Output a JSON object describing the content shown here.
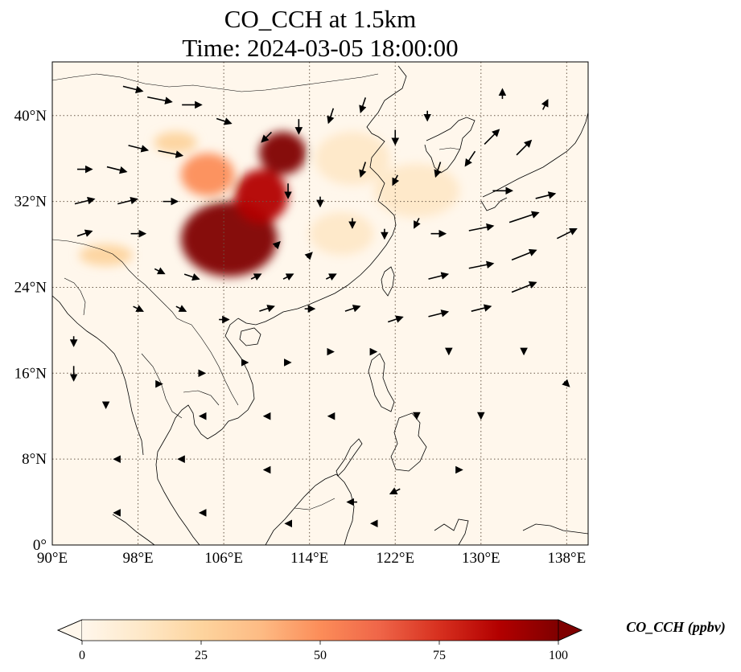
{
  "title_line1": "CO_CCH at 1.5km",
  "title_line2": "Time: 2024-03-05 18:00:00",
  "map": {
    "lon_range": [
      90,
      140
    ],
    "lat_range": [
      0,
      45
    ],
    "lon_ticks": [
      {
        "value": 90,
        "label": "90°E"
      },
      {
        "value": 98,
        "label": "98°E"
      },
      {
        "value": 106,
        "label": "106°E"
      },
      {
        "value": 114,
        "label": "114°E"
      },
      {
        "value": 122,
        "label": "122°E"
      },
      {
        "value": 130,
        "label": "130°E"
      },
      {
        "value": 138,
        "label": "138°E"
      }
    ],
    "lat_ticks": [
      {
        "value": 0,
        "label": "0°"
      },
      {
        "value": 8,
        "label": "8°N"
      },
      {
        "value": 16,
        "label": "16°N"
      },
      {
        "value": 24,
        "label": "24°N"
      },
      {
        "value": 32,
        "label": "32°N"
      },
      {
        "value": 40,
        "label": "40°N"
      }
    ],
    "gridlines": true
  },
  "colorbar": {
    "label": "CO_CCH (ppbv)",
    "ticks": [
      "0",
      "25",
      "50",
      "75",
      "100"
    ],
    "tick_values": [
      0,
      25,
      50,
      75,
      100
    ],
    "range": [
      0,
      100
    ],
    "extend": "both",
    "colormap": "OrRd",
    "colors": [
      "#fff7ec",
      "#fee8c8",
      "#fdd49e",
      "#fdbb84",
      "#fc8d59",
      "#ef6548",
      "#d7301f",
      "#b30000",
      "#7f0000"
    ]
  },
  "plume_regions": [
    {
      "lon": 106.5,
      "lat": 28.5,
      "r_lon": 4.5,
      "r_lat": 3.5,
      "value": 100
    },
    {
      "lon": 111.5,
      "lat": 36.5,
      "r_lon": 2.2,
      "r_lat": 2.0,
      "value": 100
    },
    {
      "lon": 109.5,
      "lat": 32.5,
      "r_lon": 2.5,
      "r_lat": 2.5,
      "value": 90
    },
    {
      "lon": 104.5,
      "lat": 34.5,
      "r_lon": 2.5,
      "r_lat": 2.0,
      "value": 45
    },
    {
      "lon": 101.5,
      "lat": 37.5,
      "r_lon": 2.0,
      "r_lat": 1.0,
      "value": 30
    },
    {
      "lon": 118.0,
      "lat": 36.0,
      "r_lon": 3.5,
      "r_lat": 2.5,
      "value": 15
    },
    {
      "lon": 124.0,
      "lat": 33.0,
      "r_lon": 4.0,
      "r_lat": 2.5,
      "value": 12
    },
    {
      "lon": 95.0,
      "lat": 27.0,
      "r_lon": 2.5,
      "r_lat": 1.0,
      "value": 20
    },
    {
      "lon": 117.0,
      "lat": 29.0,
      "r_lon": 3.0,
      "r_lat": 2.0,
      "value": 12
    }
  ],
  "wind_vectors": [
    {
      "lon": 97.5,
      "lat": 42.5,
      "u": 4,
      "v": -1
    },
    {
      "lon": 100,
      "lat": 41.5,
      "u": 5,
      "v": -1
    },
    {
      "lon": 103,
      "lat": 41,
      "u": 4,
      "v": 0
    },
    {
      "lon": 106,
      "lat": 39.5,
      "u": 3,
      "v": -1
    },
    {
      "lon": 98,
      "lat": 37,
      "u": 4,
      "v": -1
    },
    {
      "lon": 101,
      "lat": 36.5,
      "u": 5,
      "v": -1
    },
    {
      "lon": 93,
      "lat": 35,
      "u": 3,
      "v": 0
    },
    {
      "lon": 96,
      "lat": 35,
      "u": 4,
      "v": -1
    },
    {
      "lon": 93,
      "lat": 32,
      "u": 4,
      "v": 1
    },
    {
      "lon": 97,
      "lat": 32,
      "u": 4,
      "v": 1
    },
    {
      "lon": 101,
      "lat": 32,
      "u": 3,
      "v": 0
    },
    {
      "lon": 93,
      "lat": 29,
      "u": 3,
      "v": 1
    },
    {
      "lon": 98,
      "lat": 29,
      "u": 3,
      "v": 0
    },
    {
      "lon": 100,
      "lat": 25.5,
      "u": 2,
      "v": -1
    },
    {
      "lon": 103,
      "lat": 25,
      "u": 3,
      "v": -1
    },
    {
      "lon": 98,
      "lat": 22,
      "u": 2,
      "v": -1
    },
    {
      "lon": 102,
      "lat": 22,
      "u": 2,
      "v": -1
    },
    {
      "lon": 106,
      "lat": 21,
      "u": 2,
      "v": 0
    },
    {
      "lon": 110,
      "lat": 22,
      "u": 3,
      "v": 1
    },
    {
      "lon": 114,
      "lat": 22,
      "u": 2,
      "v": 0
    },
    {
      "lon": 118,
      "lat": 22,
      "u": 3,
      "v": 1
    },
    {
      "lon": 122,
      "lat": 21,
      "u": 3,
      "v": 1
    },
    {
      "lon": 126,
      "lat": 21.5,
      "u": 4,
      "v": 1
    },
    {
      "lon": 130,
      "lat": 22,
      "u": 4,
      "v": 1
    },
    {
      "lon": 134,
      "lat": 24,
      "u": 5,
      "v": 2
    },
    {
      "lon": 126,
      "lat": 25,
      "u": 4,
      "v": 1
    },
    {
      "lon": 130,
      "lat": 26,
      "u": 5,
      "v": 1
    },
    {
      "lon": 134,
      "lat": 27,
      "u": 5,
      "v": 2
    },
    {
      "lon": 138,
      "lat": 29,
      "u": 4,
      "v": 2
    },
    {
      "lon": 130,
      "lat": 29.5,
      "u": 5,
      "v": 1
    },
    {
      "lon": 134,
      "lat": 30.5,
      "u": 6,
      "v": 2
    },
    {
      "lon": 132,
      "lat": 33,
      "u": 4,
      "v": 0
    },
    {
      "lon": 136,
      "lat": 32.5,
      "u": 4,
      "v": 1
    },
    {
      "lon": 126,
      "lat": 29,
      "u": 3,
      "v": 0
    },
    {
      "lon": 110,
      "lat": 38,
      "u": -2,
      "v": -2
    },
    {
      "lon": 113,
      "lat": 39,
      "u": 0,
      "v": -3
    },
    {
      "lon": 116,
      "lat": 40,
      "u": -1,
      "v": -3
    },
    {
      "lon": 119,
      "lat": 41,
      "u": -1,
      "v": -3
    },
    {
      "lon": 122,
      "lat": 38,
      "u": 0,
      "v": -3
    },
    {
      "lon": 125,
      "lat": 40,
      "u": 0,
      "v": -2
    },
    {
      "lon": 119,
      "lat": 35,
      "u": -1,
      "v": -3
    },
    {
      "lon": 122,
      "lat": 34,
      "u": -1,
      "v": -2
    },
    {
      "lon": 126,
      "lat": 35,
      "u": -1,
      "v": -3
    },
    {
      "lon": 129,
      "lat": 36,
      "u": -2,
      "v": -3
    },
    {
      "lon": 131,
      "lat": 38,
      "u": 3,
      "v": 3
    },
    {
      "lon": 134,
      "lat": 37,
      "u": 3,
      "v": 3
    },
    {
      "lon": 132,
      "lat": 42,
      "u": 0,
      "v": 2
    },
    {
      "lon": 136,
      "lat": 41,
      "u": 1,
      "v": 2
    },
    {
      "lon": 112,
      "lat": 33,
      "u": 0,
      "v": -3
    },
    {
      "lon": 115,
      "lat": 32,
      "u": 0,
      "v": -2
    },
    {
      "lon": 118,
      "lat": 30,
      "u": 0,
      "v": -2
    },
    {
      "lon": 121,
      "lat": 29,
      "u": 0,
      "v": -2
    },
    {
      "lon": 124,
      "lat": 30,
      "u": -1,
      "v": -2
    },
    {
      "lon": 111,
      "lat": 28,
      "u": 1,
      "v": 1
    },
    {
      "lon": 114,
      "lat": 27,
      "u": 1,
      "v": 1
    },
    {
      "lon": 109,
      "lat": 25,
      "u": 2,
      "v": 1
    },
    {
      "lon": 112,
      "lat": 25,
      "u": 2,
      "v": 1
    },
    {
      "lon": 116,
      "lat": 25,
      "u": 2,
      "v": 1
    },
    {
      "lon": 92,
      "lat": 19,
      "u": 0,
      "v": -2
    },
    {
      "lon": 92,
      "lat": 16,
      "u": 0,
      "v": -3
    },
    {
      "lon": 95,
      "lat": 13,
      "u": 0,
      "v": -1
    },
    {
      "lon": 100,
      "lat": 15,
      "u": 1,
      "v": 0
    },
    {
      "lon": 104,
      "lat": 16,
      "u": 1,
      "v": 0
    },
    {
      "lon": 108,
      "lat": 17,
      "u": 1,
      "v": 0
    },
    {
      "lon": 112,
      "lat": 17,
      "u": 1,
      "v": 0
    },
    {
      "lon": 116,
      "lat": 18,
      "u": 1,
      "v": 0
    },
    {
      "lon": 120,
      "lat": 18,
      "u": 1,
      "v": 0
    },
    {
      "lon": 127,
      "lat": 18,
      "u": 0,
      "v": -1
    },
    {
      "lon": 134,
      "lat": 18,
      "u": 0,
      "v": -1
    },
    {
      "lon": 138,
      "lat": 15,
      "u": 1,
      "v": -1
    },
    {
      "lon": 104,
      "lat": 12,
      "u": -1,
      "v": 0
    },
    {
      "lon": 110,
      "lat": 12,
      "u": -1,
      "v": 0
    },
    {
      "lon": 116,
      "lat": 12,
      "u": -1,
      "v": 0
    },
    {
      "lon": 124,
      "lat": 12,
      "u": 0,
      "v": -1
    },
    {
      "lon": 130,
      "lat": 12,
      "u": 0,
      "v": -1
    },
    {
      "lon": 96,
      "lat": 8,
      "u": -1,
      "v": 0
    },
    {
      "lon": 102,
      "lat": 8,
      "u": -1,
      "v": 0
    },
    {
      "lon": 110,
      "lat": 7,
      "u": -1,
      "v": 0
    },
    {
      "lon": 118,
      "lat": 4,
      "u": -2,
      "v": 0
    },
    {
      "lon": 122,
      "lat": 5,
      "u": -2,
      "v": -1
    },
    {
      "lon": 128,
      "lat": 7,
      "u": 1,
      "v": 0
    },
    {
      "lon": 96,
      "lat": 3,
      "u": -1,
      "v": 0
    },
    {
      "lon": 104,
      "lat": 3,
      "u": -1,
      "v": 0
    },
    {
      "lon": 112,
      "lat": 2,
      "u": -1,
      "v": 0
    },
    {
      "lon": 120,
      "lat": 2,
      "u": -1,
      "v": 0
    }
  ]
}
